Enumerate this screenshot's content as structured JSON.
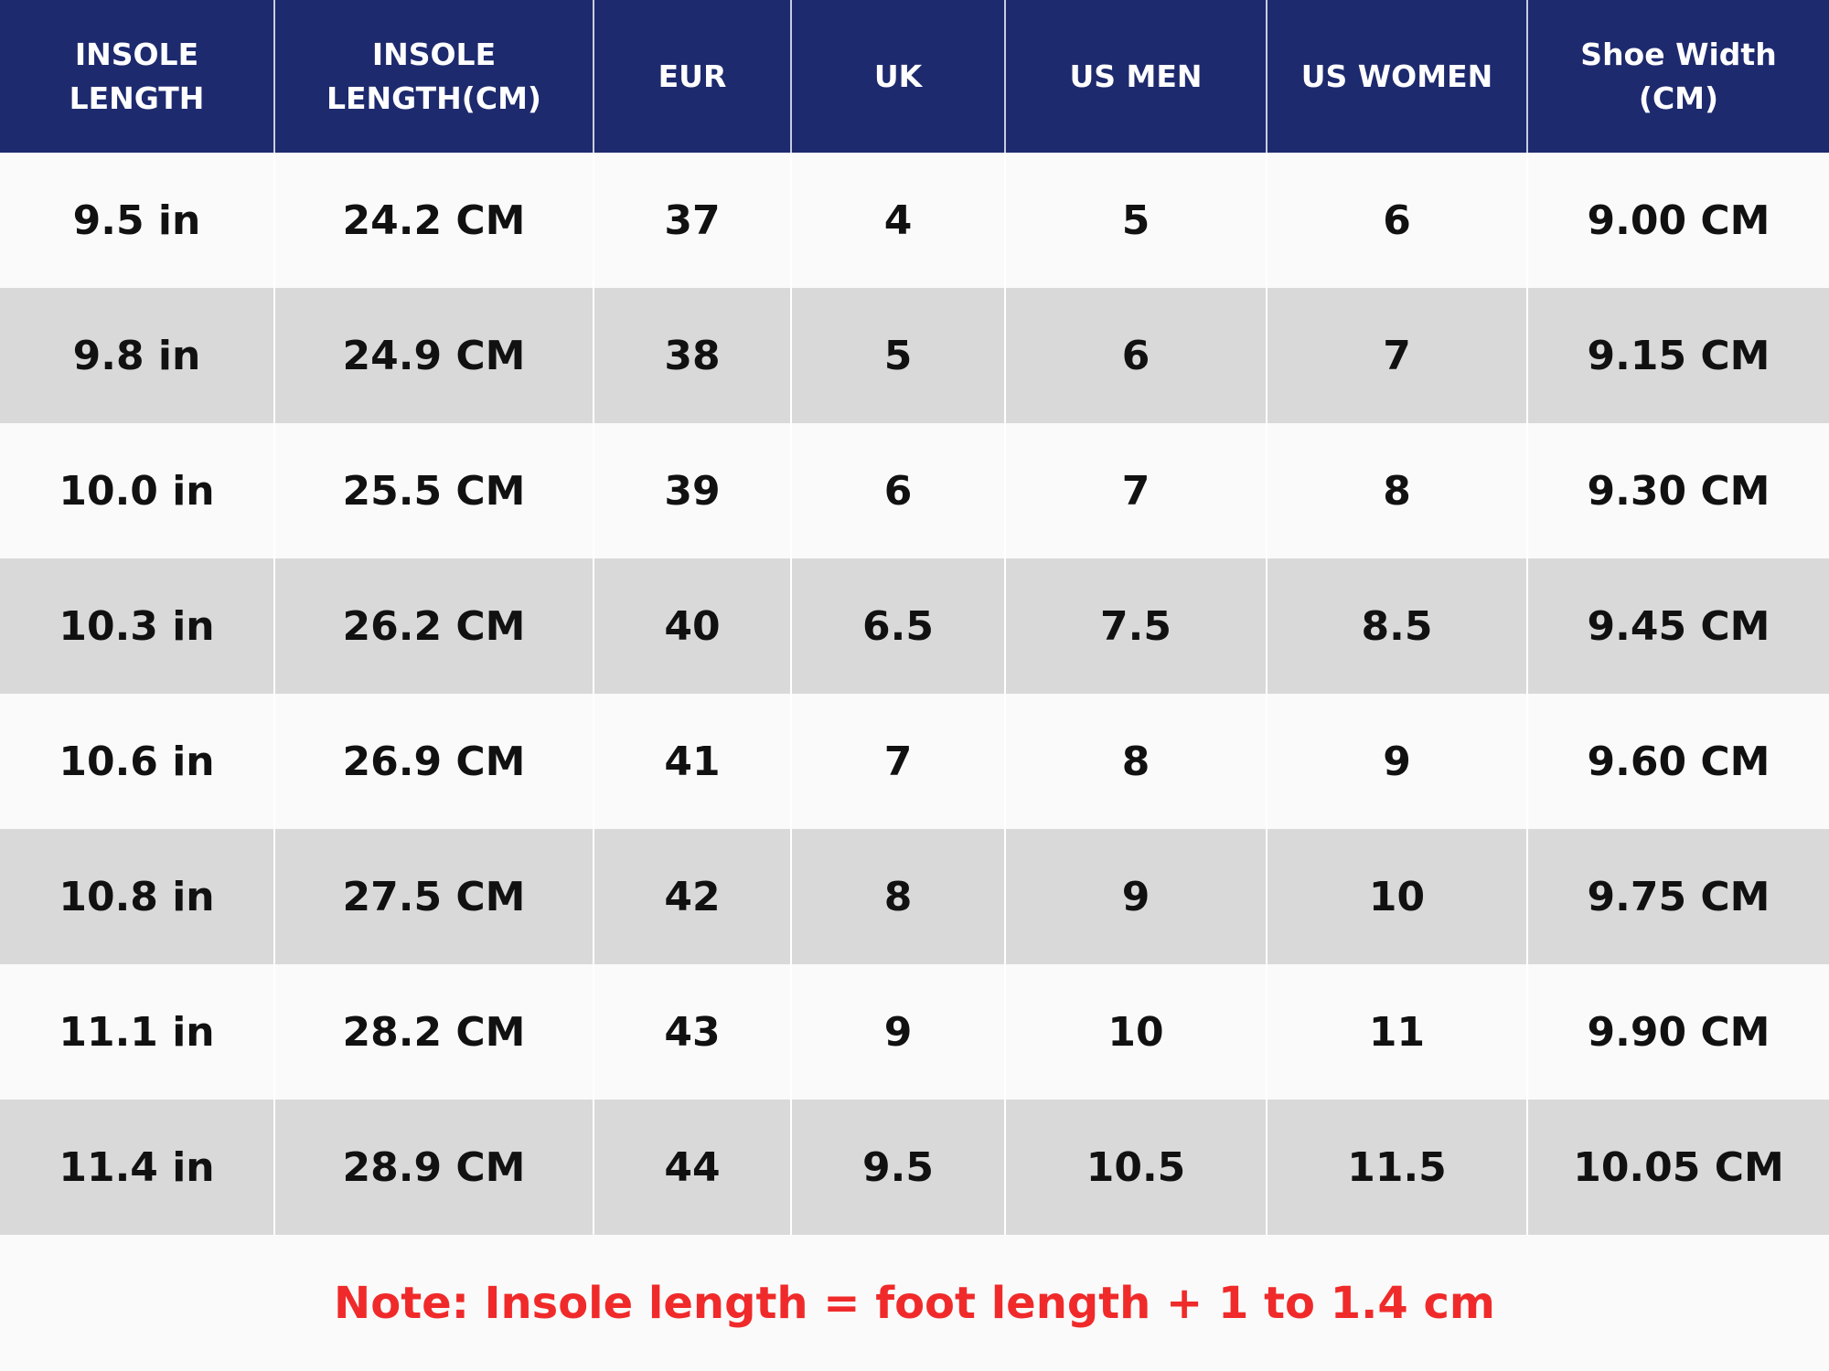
{
  "table": {
    "header": [
      [
        "INSOLE",
        "LENGTH"
      ],
      [
        "INSOLE",
        "LENGTH(CM)"
      ],
      [
        "EUR"
      ],
      [
        "UK"
      ],
      [
        "US MEN"
      ],
      [
        "US WOMEN"
      ],
      [
        "Shoe Width",
        "(CM)"
      ]
    ],
    "rows": [
      [
        "9.5 in",
        "24.2 CM",
        "37",
        "4",
        "5",
        "6",
        "9.00 CM"
      ],
      [
        "9.8 in",
        "24.9 CM",
        "38",
        "5",
        "6",
        "7",
        "9.15 CM"
      ],
      [
        "10.0 in",
        "25.5 CM",
        "39",
        "6",
        "7",
        "8",
        "9.30 CM"
      ],
      [
        "10.3 in",
        "26.2 CM",
        "40",
        "6.5",
        "7.5",
        "8.5",
        "9.45 CM"
      ],
      [
        "10.6 in",
        "26.9 CM",
        "41",
        "7",
        "8",
        "9",
        "9.60 CM"
      ],
      [
        "10.8 in",
        "27.5 CM",
        "42",
        "8",
        "9",
        "10",
        "9.75 CM"
      ],
      [
        "11.1 in",
        "28.2 CM",
        "43",
        "9",
        "10",
        "11",
        "9.90 CM"
      ],
      [
        "11.4 in",
        "28.9 CM",
        "44",
        "9.5",
        "10.5",
        "11.5",
        "10.05 CM"
      ]
    ]
  },
  "note": "Note: Insole length = foot length + 1 to 1.4 cm"
}
